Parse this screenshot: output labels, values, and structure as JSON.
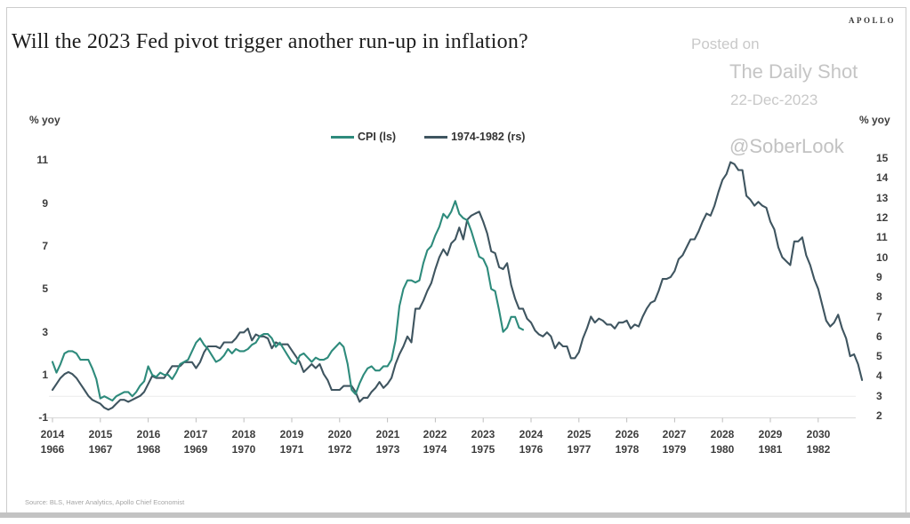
{
  "header": {
    "logo": "APOLLO",
    "title": "Will the 2023 Fed pivot trigger another run-up in inflation?"
  },
  "watermark": {
    "posted_on": "Posted on",
    "site": "The Daily Shot",
    "date": "22-Dec-2023",
    "handle": "@SoberLook"
  },
  "source": "Source: BLS, Haver Analytics, Apollo Chief Economist",
  "legend": {
    "items": [
      {
        "label": "CPI (ls)",
        "color": "#2e8b7c"
      },
      {
        "label": "1974-1982 (rs)",
        "color": "#3f5560"
      }
    ]
  },
  "chart_data": {
    "type": "line",
    "title": "Will the 2023 Fed pivot trigger another run-up in inflation?",
    "grid": "single faint horizontal line at left-axis 0",
    "legend_position": "top-center",
    "left_axis": {
      "label": "% yoy",
      "ticks": [
        11,
        9,
        7,
        5,
        3,
        1,
        -1
      ],
      "min": -1.2,
      "max": 11.5
    },
    "right_axis": {
      "label": "% yoy",
      "ticks": [
        15,
        14,
        13,
        12,
        11,
        10,
        9,
        8,
        7,
        6,
        5,
        4,
        3,
        2
      ],
      "min": 2,
      "max": 15
    },
    "x_axis": {
      "row1_years": [
        2014,
        2015,
        2016,
        2017,
        2018,
        2019,
        2020,
        2021,
        2022,
        2023,
        2024,
        2025,
        2026,
        2027,
        2028,
        2029,
        2030
      ],
      "row2_years": [
        1966,
        1967,
        1968,
        1969,
        1970,
        1971,
        1972,
        1973,
        1974,
        1975,
        1976,
        1977,
        1978,
        1979,
        1980,
        1981,
        1982
      ]
    },
    "series": [
      {
        "name": "CPI (ls)",
        "axis": "left",
        "color": "#2e8b7c",
        "start_year": 2014,
        "freq": "monthly",
        "values": [
          1.6,
          1.1,
          1.5,
          2.0,
          2.1,
          2.1,
          2.0,
          1.7,
          1.7,
          1.7,
          1.3,
          0.8,
          -0.1,
          0.0,
          -0.1,
          -0.2,
          0.0,
          0.1,
          0.2,
          0.2,
          0.0,
          0.2,
          0.5,
          0.7,
          1.4,
          1.0,
          0.9,
          1.1,
          1.0,
          1.0,
          0.8,
          1.1,
          1.5,
          1.6,
          1.7,
          2.1,
          2.5,
          2.7,
          2.4,
          2.2,
          1.9,
          1.6,
          1.7,
          1.9,
          2.2,
          2.0,
          2.2,
          2.1,
          2.1,
          2.2,
          2.4,
          2.5,
          2.8,
          2.9,
          2.9,
          2.7,
          2.3,
          2.5,
          2.2,
          1.9,
          1.6,
          1.5,
          1.9,
          2.0,
          1.8,
          1.6,
          1.8,
          1.7,
          1.7,
          1.8,
          2.1,
          2.3,
          2.5,
          2.3,
          1.5,
          0.3,
          0.1,
          0.6,
          1.0,
          1.3,
          1.4,
          1.2,
          1.2,
          1.4,
          1.4,
          1.7,
          2.6,
          4.2,
          5.0,
          5.4,
          5.4,
          5.3,
          5.4,
          6.2,
          6.8,
          7.0,
          7.5,
          7.9,
          8.5,
          8.3,
          8.6,
          9.1,
          8.5,
          8.3,
          8.2,
          7.7,
          7.1,
          6.5,
          6.4,
          6.0,
          5.0,
          4.9,
          4.0,
          3.0,
          3.2,
          3.7,
          3.7,
          3.2,
          3.1
        ]
      },
      {
        "name": "1974-1982 (rs)",
        "axis": "right",
        "color": "#3f5560",
        "start_year": 1966,
        "freq": "monthly",
        "values": [
          3.3,
          3.6,
          3.9,
          4.1,
          4.2,
          4.1,
          3.9,
          3.6,
          3.3,
          3.0,
          2.8,
          2.7,
          2.6,
          2.4,
          2.3,
          2.4,
          2.6,
          2.8,
          2.8,
          2.7,
          2.8,
          2.9,
          3.0,
          3.2,
          3.6,
          4.0,
          3.9,
          3.9,
          3.9,
          4.2,
          4.5,
          4.5,
          4.5,
          4.7,
          4.7,
          4.7,
          4.4,
          4.7,
          5.2,
          5.5,
          5.5,
          5.5,
          5.4,
          5.7,
          5.7,
          5.7,
          5.9,
          6.2,
          6.2,
          6.4,
          5.8,
          6.1,
          6.0,
          6.0,
          5.9,
          5.4,
          5.7,
          5.6,
          5.6,
          5.6,
          5.3,
          5.0,
          4.7,
          4.2,
          4.4,
          4.6,
          4.4,
          4.6,
          4.1,
          3.8,
          3.3,
          3.3,
          3.3,
          3.5,
          3.5,
          3.5,
          3.2,
          2.7,
          2.9,
          2.9,
          3.2,
          3.4,
          3.7,
          3.4,
          3.6,
          3.9,
          4.6,
          5.1,
          5.5,
          6.0,
          5.7,
          7.4,
          7.4,
          7.8,
          8.3,
          8.7,
          9.4,
          10.0,
          10.4,
          10.1,
          10.7,
          10.9,
          11.5,
          10.9,
          11.9,
          12.1,
          12.2,
          12.3,
          11.8,
          11.2,
          10.3,
          10.2,
          9.5,
          9.4,
          9.7,
          8.6,
          7.9,
          7.4,
          7.4,
          6.9,
          6.7,
          6.3,
          6.1,
          6.0,
          6.2,
          6.0,
          5.4,
          5.7,
          5.5,
          5.5,
          4.9,
          4.9,
          5.2,
          5.9,
          6.4,
          7.0,
          6.7,
          6.9,
          6.8,
          6.6,
          6.6,
          6.4,
          6.7,
          6.7,
          6.8,
          6.4,
          6.6,
          6.5,
          7.0,
          7.4,
          7.7,
          7.8,
          8.3,
          8.9,
          8.9,
          9.0,
          9.3,
          9.9,
          10.1,
          10.5,
          10.9,
          10.9,
          11.3,
          11.8,
          12.2,
          12.1,
          12.6,
          13.3,
          13.9,
          14.2,
          14.8,
          14.7,
          14.4,
          14.4,
          13.1,
          12.9,
          12.6,
          12.8,
          12.6,
          12.5,
          11.8,
          11.4,
          10.5,
          10.0,
          9.8,
          9.6,
          10.8,
          10.8,
          11.0,
          10.1,
          9.6,
          8.9,
          8.4,
          7.6,
          6.8,
          6.5,
          6.7,
          7.1,
          6.4,
          5.9,
          5.0,
          5.1,
          4.6,
          3.8
        ]
      }
    ]
  }
}
